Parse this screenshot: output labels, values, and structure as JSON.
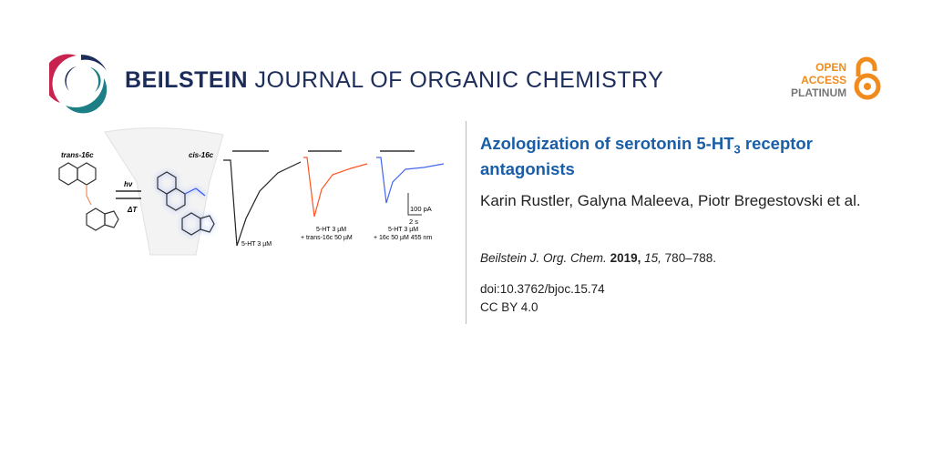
{
  "header": {
    "journal_bold": "BEILSTEIN",
    "journal_rest": " JOURNAL OF ORGANIC CHEMISTRY",
    "open_access": [
      "OPEN",
      "ACCESS",
      "PLATINUM"
    ]
  },
  "colors": {
    "brand_navy": "#1d2d5b",
    "title_blue": "#1a5ea8",
    "oa_orange": "#f08c1e",
    "logo_red": "#c8234f",
    "logo_teal": "#1c7f86"
  },
  "article": {
    "title_pre": "Azologization of serotonin 5-HT",
    "title_sub": "3",
    "title_post": " receptor antagonists",
    "authors": "Karin Rustler, Galyna Maleeva, Piotr Bregestovski et al.",
    "citation": {
      "journal": "Beilstein J. Org. Chem.",
      "year": "2019,",
      "volume": "15,",
      "pages": "780–788."
    },
    "doi": "doi:10.3762/bjoc.15.74",
    "license": "CC BY 4.0"
  },
  "graphical_abstract": {
    "trans_label": "trans-16c",
    "cis_label": "cis-16c",
    "hv": "hν",
    "dT": "ΔT",
    "scale_current": "100 pA",
    "scale_time": "2 s",
    "trace1": "5-HT 3 µM",
    "trace2_l1": "5-HT 3 µM",
    "trace2_l2": "+ trans-16c 50 µM",
    "trace3_l1": "5-HT 3 µM",
    "trace3_l2": "+ 16c 50 µM 455 nm"
  }
}
